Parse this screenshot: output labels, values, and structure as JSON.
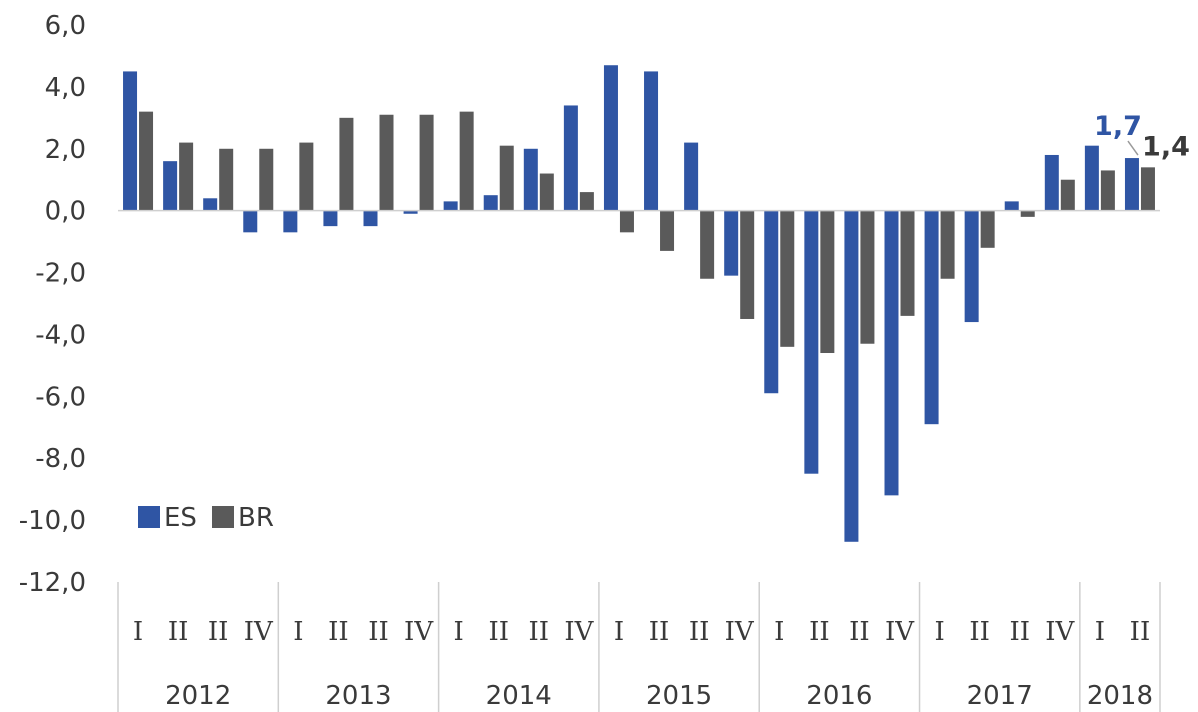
{
  "chart_data": {
    "type": "bar",
    "ylim": [
      -12,
      6
    ],
    "yticks": [
      "6,0",
      "4,0",
      "2,0",
      "0,0",
      "-2,0",
      "-4,0",
      "-6,0",
      "-8,0",
      "-10,0",
      "-12,0"
    ],
    "ytick_values": [
      6,
      4,
      2,
      0,
      -2,
      -4,
      -6,
      -8,
      -10,
      -12
    ],
    "categories": [
      "I",
      "II",
      "II",
      "IV",
      "I",
      "II",
      "II",
      "IV",
      "I",
      "II",
      "II",
      "IV",
      "I",
      "II",
      "II",
      "IV",
      "I",
      "II",
      "II",
      "IV",
      "I",
      "II",
      "II",
      "IV",
      "I",
      "II"
    ],
    "years": [
      {
        "label": "2012",
        "count": 4
      },
      {
        "label": "2013",
        "count": 4
      },
      {
        "label": "2014",
        "count": 4
      },
      {
        "label": "2015",
        "count": 4
      },
      {
        "label": "2016",
        "count": 4
      },
      {
        "label": "2017",
        "count": 4
      },
      {
        "label": "2018",
        "count": 2
      }
    ],
    "series": [
      {
        "name": "ES",
        "color": "#2f55a4",
        "values": [
          4.5,
          1.6,
          0.4,
          -0.7,
          -0.7,
          -0.5,
          -0.5,
          -0.1,
          0.3,
          0.5,
          2.0,
          3.4,
          4.7,
          4.5,
          2.2,
          -2.1,
          -5.9,
          -8.5,
          -10.7,
          -9.2,
          -6.9,
          -3.6,
          0.3,
          1.8,
          2.1,
          1.7
        ]
      },
      {
        "name": "BR",
        "color": "#5a5a5a",
        "values": [
          3.2,
          2.2,
          2.0,
          2.0,
          2.2,
          3.0,
          3.1,
          3.1,
          3.2,
          2.1,
          1.2,
          0.6,
          -0.7,
          -1.3,
          -2.2,
          -3.5,
          -4.4,
          -4.6,
          -4.3,
          -3.4,
          -2.2,
          -1.2,
          -0.2,
          1.0,
          1.3,
          1.4
        ]
      }
    ],
    "annotations": {
      "es_last": "1,7",
      "br_last": "1,4"
    },
    "legend": {
      "placement": "bottom-left",
      "items": [
        "ES",
        "BR"
      ]
    },
    "grid": false
  }
}
